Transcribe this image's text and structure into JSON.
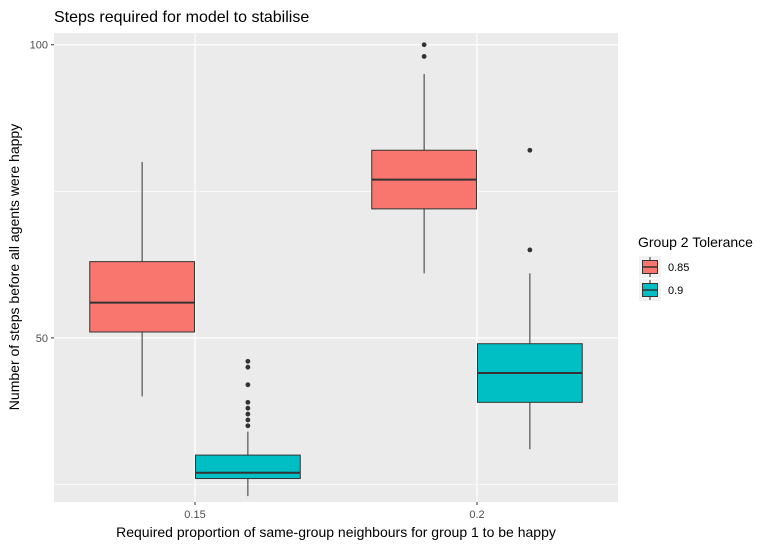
{
  "chart_data": {
    "type": "boxplot",
    "title": "Steps required for model to stabilise",
    "xlabel": "Required proportion of same-group neighbours for group 1 to be happy",
    "ylabel": "Number of steps before all agents were happy",
    "categories": [
      "0.15",
      "0.2"
    ],
    "y_ticks": [
      50,
      100
    ],
    "ylim": [
      22,
      102
    ],
    "grid": true,
    "legend": {
      "title": "Group 2 Tolerance",
      "position": "right",
      "entries": [
        {
          "label": "0.85",
          "color": "#F8766D"
        },
        {
          "label": "0.9",
          "color": "#00BFC4"
        }
      ]
    },
    "series": [
      {
        "name": "0.85",
        "color": "#F8766D",
        "boxes": [
          {
            "category": "0.15",
            "min": 40,
            "q1": 51,
            "median": 56,
            "q3": 63,
            "max": 80,
            "outliers": []
          },
          {
            "category": "0.2",
            "min": 61,
            "q1": 72,
            "median": 77,
            "q3": 82,
            "max": 95,
            "outliers": [
              98,
              100
            ]
          }
        ]
      },
      {
        "name": "0.9",
        "color": "#00BFC4",
        "boxes": [
          {
            "category": "0.15",
            "min": 23,
            "q1": 26,
            "median": 27,
            "q3": 30,
            "max": 34,
            "outliers": [
              35,
              36,
              37,
              38,
              39,
              42,
              45,
              46
            ]
          },
          {
            "category": "0.2",
            "min": 31,
            "q1": 39,
            "median": 44,
            "q3": 49,
            "max": 61,
            "outliers": [
              65,
              82
            ]
          }
        ]
      }
    ]
  }
}
